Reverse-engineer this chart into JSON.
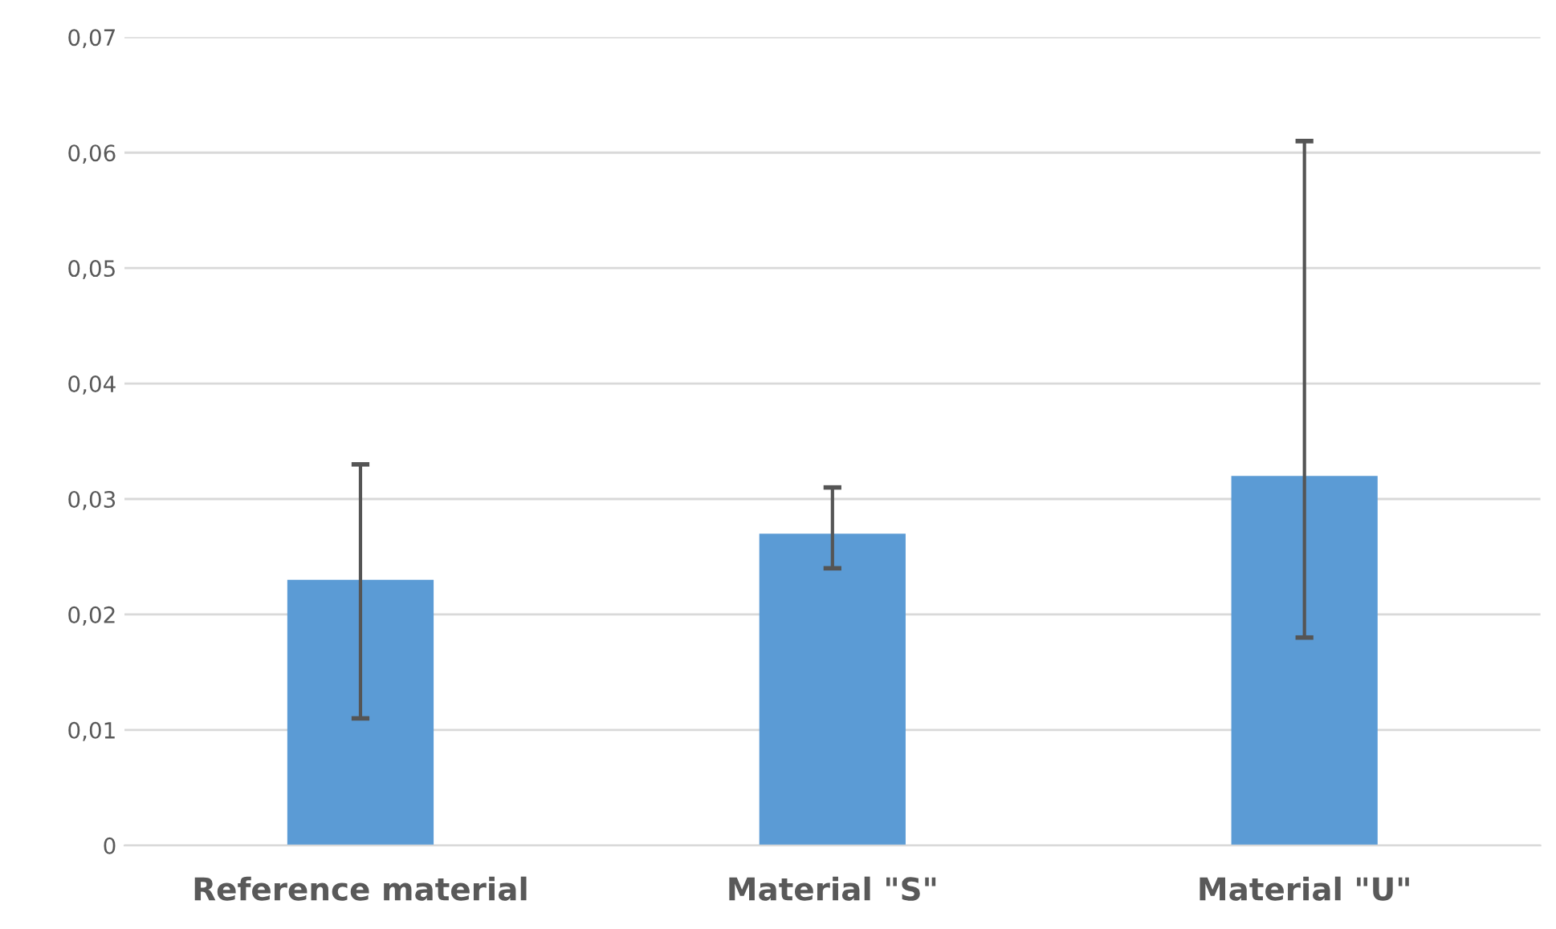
{
  "chart_data": {
    "type": "bar",
    "categories": [
      "Reference material",
      "Material \"S\"",
      "Material \"U\""
    ],
    "values": [
      0.023,
      0.027,
      0.032
    ],
    "color": "#5b9bd5",
    "errors": [
      [
        0.011,
        0.033
      ],
      [
        0.024,
        0.031
      ],
      [
        0.018,
        0.061
      ]
    ],
    "ylim": [
      0,
      0.07
    ],
    "yticks": [
      0,
      {
        "value": 0.01,
        "label": "0,01"
      },
      {
        "value": 0.02,
        "label": "0,02"
      },
      {
        "value": 0.03,
        "label": "0,03"
      },
      {
        "value": 0.04,
        "label": "0,04"
      },
      {
        "value": 0.05,
        "label": "0,05"
      },
      {
        "value": 0.06,
        "label": "0,06"
      },
      {
        "value": 0.07,
        "label": "0,07"
      }
    ],
    "grid": "y",
    "legend": false
  }
}
